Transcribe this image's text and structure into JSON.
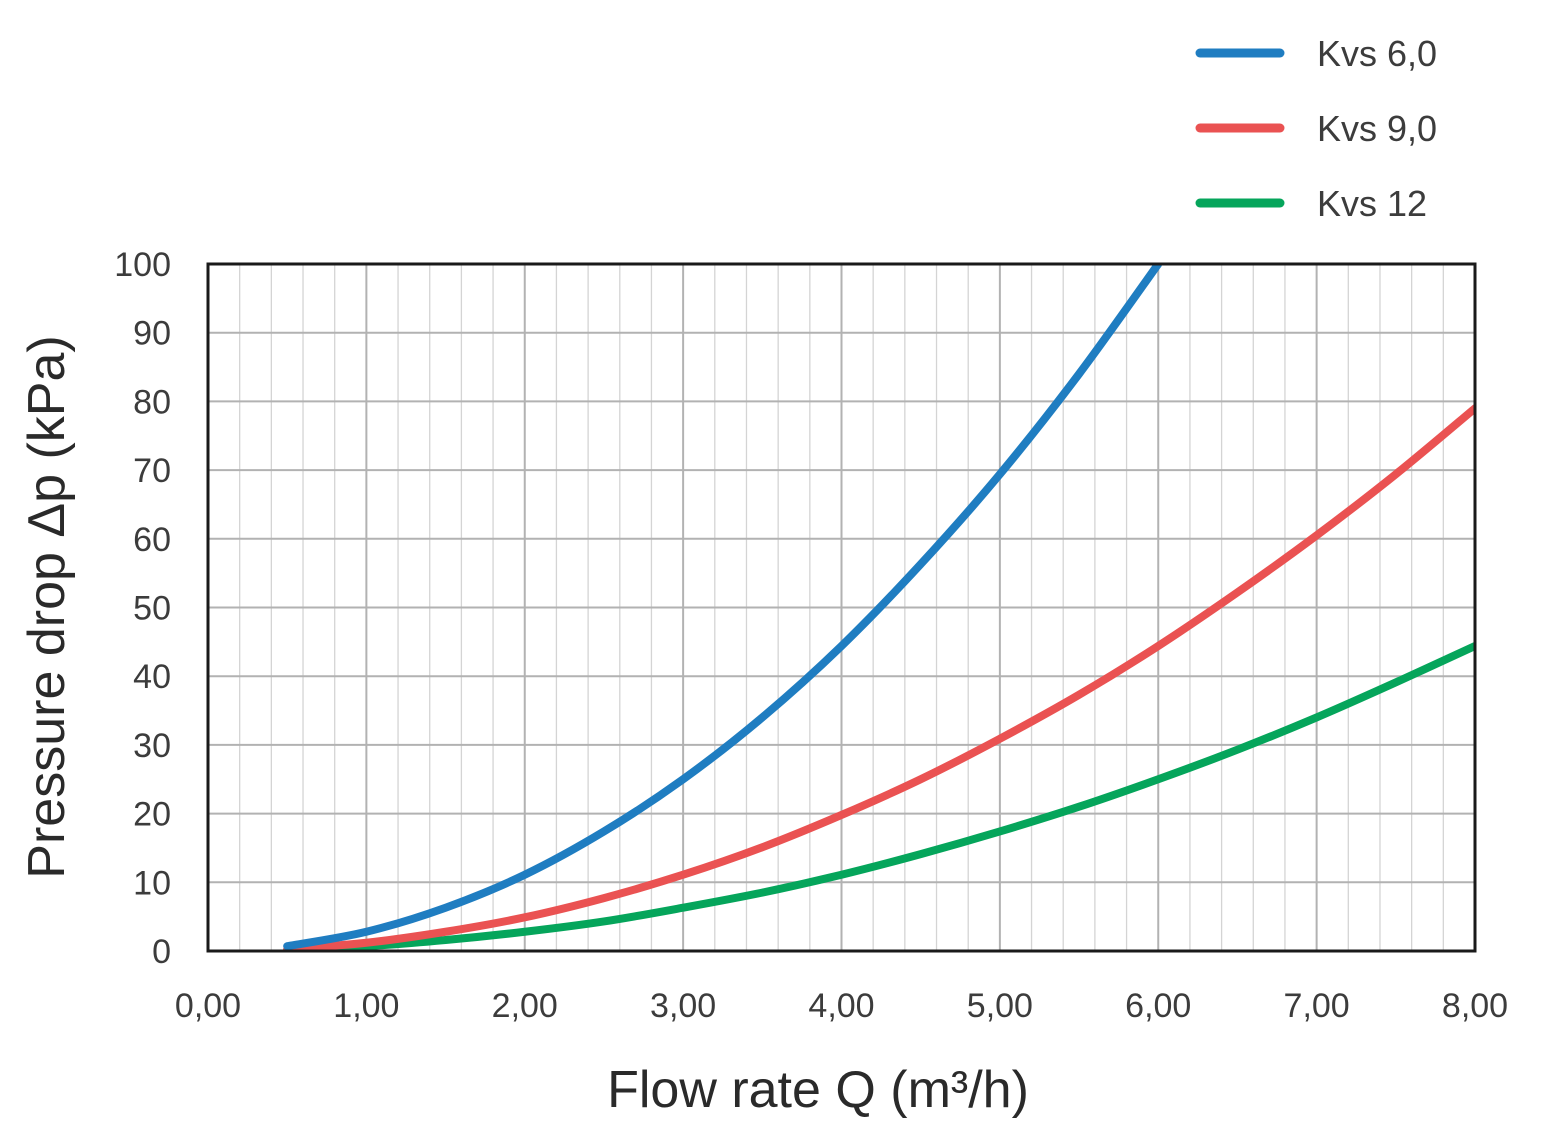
{
  "chart_data": {
    "type": "line",
    "xlabel": "Flow rate Q (m³/h)",
    "ylabel": "Pressure drop Δp (kPa)",
    "xlim": [
      0,
      8
    ],
    "ylim": [
      0,
      100
    ],
    "x_tick_labels": [
      "0,00",
      "1,00",
      "2,00",
      "3,00",
      "4,00",
      "5,00",
      "6,00",
      "7,00",
      "8,00"
    ],
    "y_tick_labels": [
      "0",
      "10",
      "20",
      "30",
      "40",
      "50",
      "60",
      "70",
      "80",
      "90",
      "100"
    ],
    "x_minor_step": 0.2,
    "y_minor_step": 10,
    "grid": true,
    "legend_position": "top-right",
    "series": [
      {
        "name": "Kvs 6,0",
        "color": "#1f7dc1",
        "x": [
          0.5,
          1.0,
          1.5,
          2.0,
          2.5,
          3.0,
          3.5,
          4.0,
          4.5,
          5.0,
          5.5,
          6.0
        ],
        "y": [
          0.7,
          2.8,
          6.3,
          11.1,
          17.4,
          25.0,
          34.0,
          44.4,
          56.3,
          69.4,
          84.0,
          100.0
        ]
      },
      {
        "name": "Kvs 9,0",
        "color": "#ea5252",
        "x": [
          0.5,
          1.0,
          1.5,
          2.0,
          2.5,
          3.0,
          3.5,
          4.0,
          4.5,
          5.0,
          5.5,
          6.0,
          6.5,
          7.0,
          7.5,
          8.0
        ],
        "y": [
          0.3,
          1.2,
          2.8,
          4.9,
          7.7,
          11.1,
          15.1,
          19.8,
          25.0,
          30.9,
          37.3,
          44.4,
          52.2,
          60.5,
          69.4,
          79.0
        ]
      },
      {
        "name": "Kvs 12",
        "color": "#05a55b",
        "x": [
          0.5,
          1.0,
          1.5,
          2.0,
          2.5,
          3.0,
          3.5,
          4.0,
          4.5,
          5.0,
          5.5,
          6.0,
          6.5,
          7.0,
          7.5,
          8.0
        ],
        "y": [
          0.2,
          0.7,
          1.6,
          2.8,
          4.3,
          6.3,
          8.5,
          11.1,
          14.1,
          17.4,
          21.0,
          25.0,
          29.3,
          34.0,
          39.1,
          44.4
        ]
      }
    ]
  }
}
